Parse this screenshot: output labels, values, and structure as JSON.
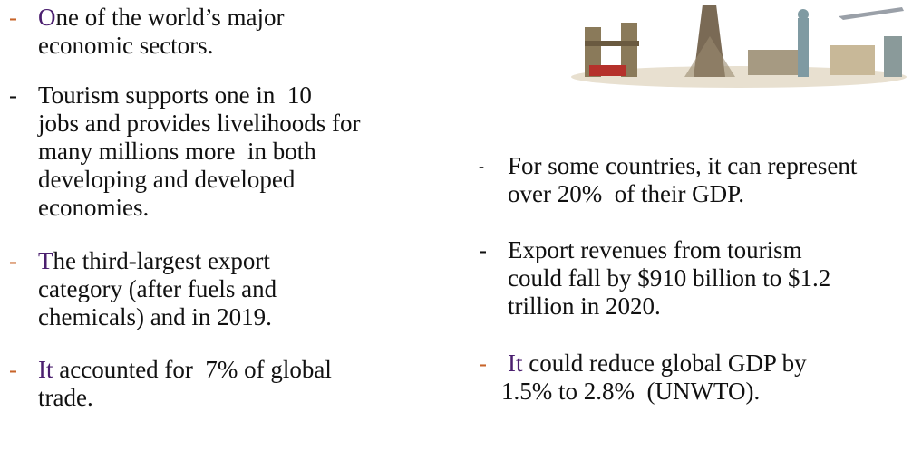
{
  "left": {
    "bullets": [
      {
        "marker": "-",
        "lead": "O",
        "lines": [
          "ne of the world’s major",
          "economic sectors."
        ]
      },
      {
        "marker": "-",
        "lead": "",
        "lines": [
          "Tourism supports one in  10",
          "jobs and provides livelihoods for",
          "many millions more  in both",
          "developing and developed",
          "economies."
        ]
      },
      {
        "marker": "-",
        "lead": "T",
        "lines": [
          "he third-largest export",
          "category (after fuels and",
          "chemicals) and in 2019."
        ]
      },
      {
        "marker": "-",
        "lead": "It",
        "lines": [
          " accounted for  7% of global",
          "trade."
        ]
      }
    ]
  },
  "right": {
    "bullets": [
      {
        "marker": "-",
        "lead": "",
        "lines": [
          "For some countries, it can represent",
          "over 20%  of their GDP."
        ]
      },
      {
        "marker": "-",
        "lead": "",
        "lines": [
          "Export revenues from tourism",
          "could fall by $910 billion to $1.2",
          "trillion in 2020."
        ]
      },
      {
        "marker": "-",
        "lead": "It",
        "lines": [
          " could reduce global GDP by",
          "1.5% to 2.8%  (UNWTO)."
        ]
      }
    ]
  }
}
